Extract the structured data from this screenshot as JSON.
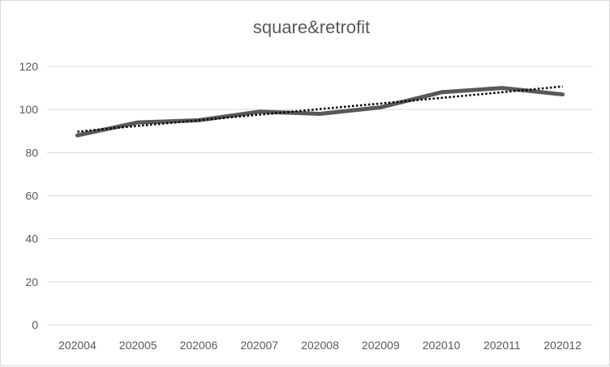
{
  "chart_data": {
    "type": "line",
    "title": "square&retrofit",
    "xlabel": "",
    "ylabel": "",
    "categories": [
      "202004",
      "202005",
      "202006",
      "202007",
      "202008",
      "202009",
      "202010",
      "202011",
      "202012"
    ],
    "series": [
      {
        "values": [
          88,
          94,
          95,
          99,
          98,
          101,
          108,
          110,
          107
        ],
        "color": "#595959",
        "style": "solid"
      },
      {
        "values": [
          89.7,
          92.4,
          95.0,
          97.6,
          100.2,
          102.8,
          105.4,
          108.0,
          110.7
        ],
        "color": "#000000",
        "style": "dotted",
        "kind": "linear trendline"
      }
    ],
    "ylim": [
      0,
      120
    ],
    "yticks": [
      "0",
      "20",
      "40",
      "60",
      "80",
      "100",
      "120"
    ],
    "grid": true,
    "legend": "none"
  }
}
